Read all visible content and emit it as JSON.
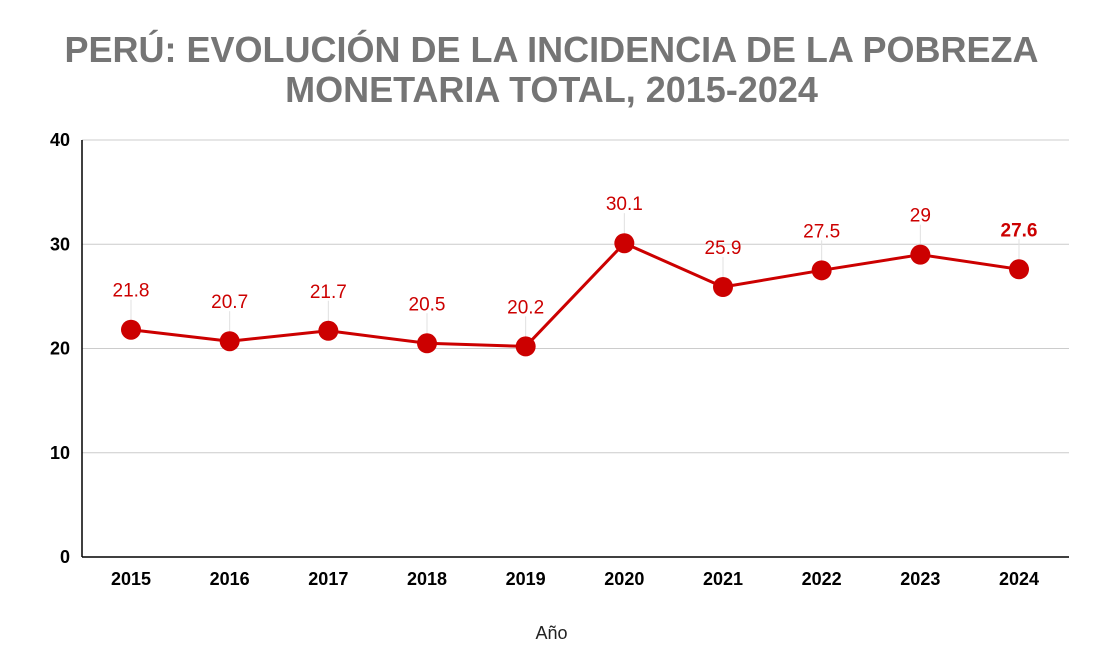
{
  "chart_data": {
    "type": "line",
    "title_lines": [
      "PERÚ: EVOLUCIÓN DE LA INCIDENCIA DE LA POBREZA",
      "MONETARIA TOTAL, 2015-2024"
    ],
    "xlabel": "Año",
    "ylabel": "",
    "categories": [
      "2015",
      "2016",
      "2017",
      "2018",
      "2019",
      "2020",
      "2021",
      "2022",
      "2023",
      "2024"
    ],
    "series": [
      {
        "values": [
          21.8,
          20.7,
          21.7,
          20.5,
          20.2,
          30.1,
          25.9,
          27.5,
          29,
          27.6
        ],
        "data_labels": [
          "21.8",
          "20.7",
          "21.7",
          "20.5",
          "20.2",
          "30.1",
          "25.9",
          "27.5",
          "29",
          "27.6"
        ],
        "color": "#cc0000"
      }
    ],
    "ylim": [
      0,
      40
    ],
    "yticks": [
      "0",
      "10",
      "20",
      "30",
      "40"
    ],
    "grid": true,
    "legend": "none",
    "colors": {
      "line": "#cc0000",
      "title": "#757575",
      "grid": "#cccccc",
      "axis": "#000000"
    }
  }
}
